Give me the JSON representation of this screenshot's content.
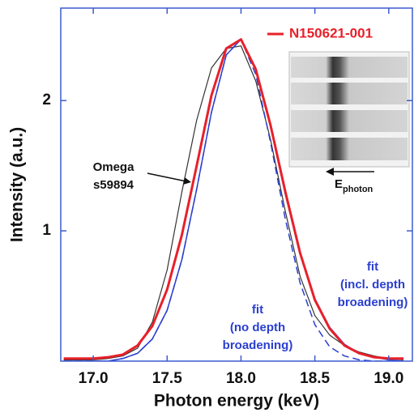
{
  "chart_data": {
    "type": "line",
    "xlabel": "Photon energy (keV)",
    "ylabel": "Intensity (a.u.)",
    "x": [
      16.8,
      16.9,
      17.0,
      17.1,
      17.2,
      17.3,
      17.4,
      17.5,
      17.6,
      17.7,
      17.8,
      17.9,
      18.0,
      18.1,
      18.2,
      18.3,
      18.4,
      18.5,
      18.6,
      18.7,
      18.8,
      18.9,
      19.0,
      19.1
    ],
    "series": [
      {
        "name": "N150621-001",
        "color": "#e8202a",
        "width": 3,
        "dash": false,
        "values": [
          0.02,
          0.02,
          0.02,
          0.03,
          0.05,
          0.12,
          0.27,
          0.55,
          0.97,
          1.5,
          2.04,
          2.4,
          2.47,
          2.24,
          1.81,
          1.3,
          0.83,
          0.47,
          0.25,
          0.12,
          0.06,
          0.03,
          0.02,
          0.02
        ]
      },
      {
        "color": "#333333",
        "width": 1.2,
        "dash": false,
        "values": [
          0.01,
          0.01,
          0.01,
          0.02,
          0.04,
          0.1,
          0.3,
          0.7,
          1.3,
          1.85,
          2.25,
          2.4,
          2.42,
          2.15,
          1.7,
          1.15,
          0.65,
          0.35,
          0.2,
          0.12,
          0.07,
          0.04,
          0.02,
          0.01
        ]
      },
      {
        "color": "#2a3fd0",
        "width": 1.5,
        "dash": true,
        "values": [
          0,
          0,
          0,
          0,
          0.02,
          0.06,
          0.17,
          0.39,
          0.78,
          1.32,
          1.91,
          2.35,
          2.47,
          2.2,
          1.68,
          1.09,
          0.6,
          0.28,
          0.11,
          0.04,
          0.01,
          0,
          0,
          0
        ]
      },
      {
        "color": "#2a3fd0",
        "width": 1.5,
        "dash": false,
        "values": [
          0,
          0,
          0,
          0,
          0.02,
          0.06,
          0.17,
          0.39,
          0.78,
          1.32,
          1.91,
          2.35,
          2.47,
          2.25,
          1.8,
          1.28,
          0.82,
          0.48,
          0.26,
          0.13,
          0.06,
          0.03,
          0.01,
          0
        ]
      }
    ],
    "xlim": [
      16.78,
      19.16
    ],
    "ylim": [
      0,
      2.71
    ],
    "xticks": [
      {
        "value": 17,
        "label": "17.0"
      },
      17.5,
      {
        "value": 18,
        "label": "18.0"
      },
      18.5,
      {
        "value": 19,
        "label": "19.0"
      }
    ],
    "yticks": [
      1,
      2
    ],
    "grid": false,
    "legend": "upper right",
    "annotations": [
      {
        "lines": [
          "Omega",
          "s59894"
        ],
        "color": "#111111"
      },
      {
        "lines": [
          "fit",
          "(no depth",
          "broadening)"
        ],
        "color": "#2a3fd0"
      },
      {
        "lines": [
          "fit",
          "(incl. depth",
          "broadening)"
        ],
        "color": "#2a3fd0"
      }
    ],
    "inset_label": {
      "main": "E",
      "subscript": "photon"
    }
  }
}
